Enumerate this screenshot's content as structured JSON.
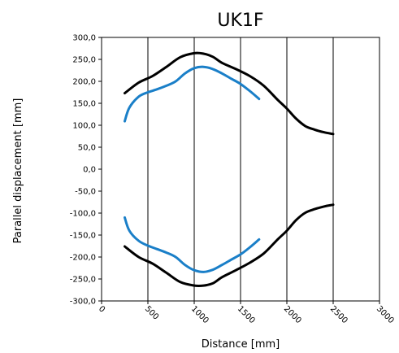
{
  "chart_data": {
    "type": "line",
    "title": "UK1F",
    "xlabel": "Distance  [mm]",
    "ylabel": "Parallel displacement [mm]",
    "xlim": [
      0,
      3000
    ],
    "ylim": [
      -300,
      300
    ],
    "x_ticks": [
      "0",
      "500",
      "1000",
      "1500",
      "2000",
      "2500",
      "3000"
    ],
    "y_ticks": [
      "300,0",
      "250,0",
      "200,0",
      "150,0",
      "100,0",
      "50,0",
      "0,0",
      "-50,0",
      "-100,0",
      "-150,0",
      "-200,0",
      "-250,0",
      "-300,0"
    ],
    "x_tick_values": [
      0,
      500,
      1000,
      1500,
      2000,
      2500,
      3000
    ],
    "y_tick_values": [
      300,
      250,
      200,
      150,
      100,
      50,
      0,
      -50,
      -100,
      -150,
      -200,
      -250,
      -300
    ],
    "grid": "vertical",
    "series": [
      {
        "color": "#000000",
        "x": [
          250,
          400,
          550,
          700,
          850,
          1000,
          1100,
          1200,
          1300,
          1450,
          1600,
          1750,
          1900,
          2000,
          2100,
          2200,
          2300,
          2400,
          2500
        ],
        "y": [
          173,
          197,
          212,
          233,
          255,
          264,
          263,
          256,
          242,
          228,
          212,
          190,
          158,
          138,
          115,
          98,
          90,
          84,
          80
        ]
      },
      {
        "color": "#000000",
        "x": [
          250,
          400,
          550,
          700,
          850,
          1000,
          1100,
          1200,
          1300,
          1450,
          1600,
          1750,
          1900,
          2000,
          2100,
          2200,
          2300,
          2400,
          2500
        ],
        "y": [
          -176,
          -200,
          -215,
          -236,
          -257,
          -265,
          -265,
          -260,
          -246,
          -230,
          -213,
          -192,
          -160,
          -140,
          -116,
          -99,
          -91,
          -85,
          -81
        ]
      },
      {
        "color": "#1a7fc8",
        "x": [
          250,
          300,
          400,
          500,
          600,
          700,
          800,
          900,
          1000,
          1100,
          1200,
          1300,
          1400,
          1500,
          1600,
          1700
        ],
        "y": [
          109,
          140,
          165,
          175,
          182,
          190,
          200,
          218,
          230,
          233,
          228,
          218,
          206,
          194,
          178,
          160
        ]
      },
      {
        "color": "#1a7fc8",
        "x": [
          250,
          300,
          400,
          500,
          600,
          700,
          800,
          900,
          1000,
          1100,
          1200,
          1300,
          1400,
          1500,
          1600,
          1700
        ],
        "y": [
          -110,
          -140,
          -163,
          -174,
          -182,
          -190,
          -200,
          -218,
          -230,
          -234,
          -229,
          -218,
          -206,
          -194,
          -178,
          -160
        ]
      }
    ]
  }
}
